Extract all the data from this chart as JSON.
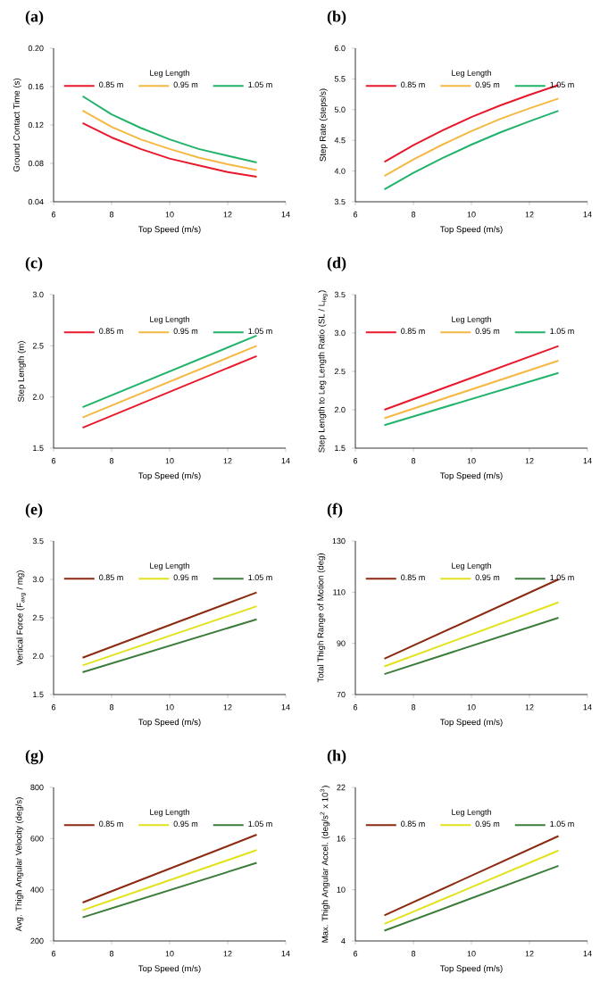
{
  "chart_data": [
    {
      "type": "line",
      "title": "(a)",
      "xlabel": "Top Speed (m/s)",
      "ylabel": "Ground Contact Time (s)",
      "legend_title": "Leg Length",
      "legend": "top",
      "x": [
        7,
        8,
        9,
        10,
        11,
        12,
        13
      ],
      "xlim": [
        6,
        14
      ],
      "xticks": [
        6,
        8,
        10,
        12,
        14
      ],
      "ylim": [
        0.04,
        0.2
      ],
      "yticks": [
        0.04,
        0.08,
        0.12,
        0.16,
        {
          "value": 0.2,
          "label": "0.20"
        }
      ],
      "series": [
        {
          "name": "0.85 m",
          "color": "#e8192c",
          "values": [
            0.122,
            0.107,
            0.095,
            0.085,
            0.078,
            0.071,
            0.066
          ]
        },
        {
          "name": "0.95 m",
          "color": "#f5b843",
          "values": [
            0.135,
            0.118,
            0.105,
            0.095,
            0.086,
            0.079,
            0.073
          ]
        },
        {
          "name": "1.05 m",
          "color": "#21b36a",
          "values": [
            0.15,
            0.131,
            0.117,
            0.105,
            0.095,
            0.088,
            0.081
          ]
        }
      ]
    },
    {
      "type": "line",
      "title": "(b)",
      "xlabel": "Top Speed (m/s)",
      "ylabel": "Step Rate (steps/s)",
      "legend_title": "Leg Length",
      "legend": "top",
      "x": [
        7,
        8,
        9,
        10,
        11,
        12,
        13
      ],
      "xlim": [
        6,
        14
      ],
      "xticks": [
        6,
        8,
        10,
        12,
        14
      ],
      "ylim": [
        3.5,
        6
      ],
      "yticks": [
        3.5,
        {
          "value": 4,
          "label": "4.0"
        },
        4.5,
        {
          "value": 5,
          "label": "5.0"
        },
        5.5,
        {
          "value": 6,
          "label": "6.0"
        }
      ],
      "series": [
        {
          "name": "0.85 m",
          "color": "#e8192c",
          "values": [
            4.15,
            4.42,
            4.66,
            4.88,
            5.07,
            5.24,
            5.4
          ]
        },
        {
          "name": "0.95 m",
          "color": "#f5b843",
          "values": [
            3.92,
            4.19,
            4.43,
            4.65,
            4.85,
            5.02,
            5.18
          ]
        },
        {
          "name": "1.05 m",
          "color": "#21b36a",
          "values": [
            3.7,
            3.97,
            4.21,
            4.43,
            4.63,
            4.81,
            4.98
          ]
        }
      ]
    },
    {
      "type": "line",
      "title": "(c)",
      "xlabel": "Top Speed (m/s)",
      "ylabel": "Step Length (m)",
      "legend_title": "Leg Length",
      "legend": "top",
      "x": [
        7,
        13
      ],
      "xlim": [
        6,
        14
      ],
      "xticks": [
        6,
        8,
        10,
        12,
        14
      ],
      "ylim": [
        1.5,
        3
      ],
      "yticks": [
        1.5,
        {
          "value": 2,
          "label": "2.0"
        },
        2.5,
        {
          "value": 3,
          "label": "3.0"
        }
      ],
      "series": [
        {
          "name": "0.85 m",
          "color": "#e8192c",
          "values": [
            1.7,
            2.4
          ]
        },
        {
          "name": "0.95 m",
          "color": "#f5b843",
          "values": [
            1.8,
            2.5
          ]
        },
        {
          "name": "1.05 m",
          "color": "#21b36a",
          "values": [
            1.9,
            2.6
          ]
        }
      ]
    },
    {
      "type": "line",
      "title": "(d)",
      "xlabel": "Top Speed (m/s)",
      "ylabel": "Step Length to Leg Length Ratio (SL / L$_{leg}$)",
      "legend_title": "Leg Length",
      "legend": "top",
      "x": [
        7,
        13
      ],
      "xlim": [
        6,
        14
      ],
      "xticks": [
        6,
        8,
        10,
        12,
        14
      ],
      "ylim": [
        1.5,
        3.5
      ],
      "yticks": [
        1.5,
        {
          "value": 2,
          "label": "2.0"
        },
        2.5,
        {
          "value": 3,
          "label": "3.0"
        },
        3.5
      ],
      "series": [
        {
          "name": "0.85 m",
          "color": "#e8192c",
          "values": [
            2.0,
            2.83
          ]
        },
        {
          "name": "0.95 m",
          "color": "#f5b843",
          "values": [
            1.89,
            2.64
          ]
        },
        {
          "name": "1.05 m",
          "color": "#21b36a",
          "values": [
            1.8,
            2.48
          ]
        }
      ]
    },
    {
      "type": "line",
      "title": "(e)",
      "xlabel": "Top Speed (m/s)",
      "ylabel": "Vertical Force (F$_{avg}$ / mg)",
      "legend_title": "Leg Length",
      "legend": "top",
      "x": [
        7,
        13
      ],
      "xlim": [
        6,
        14
      ],
      "xticks": [
        6,
        8,
        10,
        12,
        14
      ],
      "ylim": [
        1.5,
        3.5
      ],
      "yticks": [
        1.5,
        {
          "value": 2,
          "label": "2.0"
        },
        2.5,
        {
          "value": 3,
          "label": "3.0"
        },
        3.5
      ],
      "series": [
        {
          "name": "0.85 m",
          "color": "#8b2a10",
          "values": [
            1.98,
            2.83
          ]
        },
        {
          "name": "0.95 m",
          "color": "#e2e21c",
          "values": [
            1.88,
            2.65
          ]
        },
        {
          "name": "1.05 m",
          "color": "#3c7d3c",
          "values": [
            1.79,
            2.48
          ]
        }
      ]
    },
    {
      "type": "line",
      "title": "(f)",
      "xlabel": "Top Speed (m/s)",
      "ylabel": "Total Thigh Range of Motion (deg)",
      "legend_title": "Leg Length",
      "legend": "top",
      "x": [
        7,
        13
      ],
      "xlim": [
        6,
        14
      ],
      "xticks": [
        6,
        8,
        10,
        12,
        14
      ],
      "ylim": [
        70,
        130
      ],
      "yticks": [
        70,
        90,
        110,
        130
      ],
      "series": [
        {
          "name": "0.85 m",
          "color": "#8b2a10",
          "values": [
            84,
            115
          ]
        },
        {
          "name": "0.95 m",
          "color": "#e2e21c",
          "values": [
            81,
            106
          ]
        },
        {
          "name": "1.05 m",
          "color": "#3c7d3c",
          "values": [
            78,
            100
          ]
        }
      ]
    },
    {
      "type": "line",
      "title": "(g)",
      "xlabel": "Top Speed (m/s)",
      "ylabel": "Avg. Thigh Angular Velocity (deg/s)",
      "legend_title": "Leg Length",
      "legend": "top",
      "x": [
        7,
        13
      ],
      "xlim": [
        6,
        14
      ],
      "xticks": [
        6,
        8,
        10,
        12,
        14
      ],
      "ylim": [
        200,
        800
      ],
      "yticks": [
        200,
        400,
        600,
        800
      ],
      "series": [
        {
          "name": "0.85 m",
          "color": "#8b2a10",
          "values": [
            350,
            615
          ]
        },
        {
          "name": "0.95 m",
          "color": "#e2e21c",
          "values": [
            320,
            555
          ]
        },
        {
          "name": "1.05 m",
          "color": "#3c7d3c",
          "values": [
            292,
            505
          ]
        }
      ]
    },
    {
      "type": "line",
      "title": "(h)",
      "xlabel": "Top Speed (m/s)",
      "ylabel": "Max. Thigh Angular Accel. (deg/s$^{2}$ x 10$^{3}$)",
      "legend_title": "Leg Length",
      "legend": "top",
      "x": [
        7,
        13
      ],
      "xlim": [
        6,
        14
      ],
      "xticks": [
        6,
        8,
        10,
        12,
        14
      ],
      "ylim": [
        4,
        22
      ],
      "yticks": [
        4,
        10,
        16,
        22
      ],
      "series": [
        {
          "name": "0.85 m",
          "color": "#8b2a10",
          "values": [
            7.0,
            16.3
          ]
        },
        {
          "name": "0.95 m",
          "color": "#e2e21c",
          "values": [
            6.0,
            14.6
          ]
        },
        {
          "name": "1.05 m",
          "color": "#3c7d3c",
          "values": [
            5.2,
            12.8
          ]
        }
      ]
    }
  ]
}
